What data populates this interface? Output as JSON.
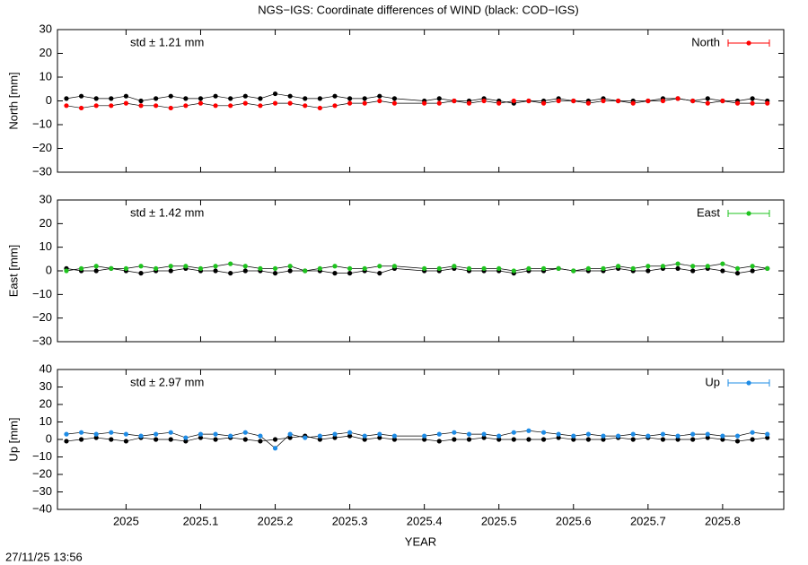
{
  "title": "NGS−IGS: Coordinate differences of WIND (black: COD−IGS)",
  "timestamp": "27/11/25 13:56",
  "chart_data": [
    {
      "type": "line",
      "ylabel": "North [mm]",
      "annotation": "std ± 1.21 mm",
      "annotation_color": "#ff0000",
      "x": [
        2024.92,
        2024.94,
        2024.96,
        2024.98,
        2025.0,
        2025.02,
        2025.04,
        2025.06,
        2025.08,
        2025.1,
        2025.12,
        2025.14,
        2025.16,
        2025.18,
        2025.2,
        2025.22,
        2025.24,
        2025.26,
        2025.28,
        2025.3,
        2025.32,
        2025.34,
        2025.36,
        2025.4,
        2025.42,
        2025.44,
        2025.46,
        2025.48,
        2025.5,
        2025.52,
        2025.54,
        2025.56,
        2025.58,
        2025.6,
        2025.62,
        2025.64,
        2025.66,
        2025.68,
        2025.7,
        2025.72,
        2025.74,
        2025.76,
        2025.78,
        2025.8,
        2025.82,
        2025.84,
        2025.86
      ],
      "xlim": [
        2024.908,
        2025.882
      ],
      "xticks": [
        2025,
        2025.1,
        2025.2,
        2025.3,
        2025.4,
        2025.5,
        2025.6,
        2025.7,
        2025.8
      ],
      "ylim": [
        -30,
        30
      ],
      "yticks": [
        {
          "value": -30,
          "label": "−30"
        },
        {
          "value": -20,
          "label": "−20"
        },
        {
          "value": -10,
          "label": "−10"
        },
        0,
        10,
        20,
        30
      ],
      "series": [
        {
          "color": "#000000",
          "values": [
            1,
            2,
            1,
            1,
            2,
            0,
            1,
            2,
            1,
            1,
            2,
            1,
            2,
            1,
            3,
            2,
            1,
            1,
            2,
            1,
            1,
            2,
            1,
            0,
            1,
            0,
            0,
            1,
            0,
            -1,
            0,
            0,
            1,
            0,
            0,
            1,
            0,
            0,
            0,
            1,
            1,
            0,
            1,
            0,
            0,
            1,
            0
          ]
        },
        {
          "name": "North",
          "color": "#ff0000",
          "values": [
            -2,
            -3,
            -2,
            -2,
            -1,
            -2,
            -2,
            -3,
            -2,
            -1,
            -2,
            -2,
            -1,
            -2,
            -1,
            -1,
            -2,
            -3,
            -2,
            -1,
            -1,
            0,
            -1,
            -1,
            -1,
            0,
            -1,
            0,
            -1,
            0,
            0,
            -1,
            0,
            0,
            -1,
            0,
            0,
            -1,
            0,
            0,
            1,
            0,
            -1,
            0,
            -1,
            -1,
            -1
          ]
        }
      ]
    },
    {
      "type": "line",
      "ylabel": "East [mm]",
      "annotation": "std ± 1.42 mm",
      "annotation_color": "#1ec31e",
      "x": [
        2024.92,
        2024.94,
        2024.96,
        2024.98,
        2025.0,
        2025.02,
        2025.04,
        2025.06,
        2025.08,
        2025.1,
        2025.12,
        2025.14,
        2025.16,
        2025.18,
        2025.2,
        2025.22,
        2025.24,
        2025.26,
        2025.28,
        2025.3,
        2025.32,
        2025.34,
        2025.36,
        2025.4,
        2025.42,
        2025.44,
        2025.46,
        2025.48,
        2025.5,
        2025.52,
        2025.54,
        2025.56,
        2025.58,
        2025.6,
        2025.62,
        2025.64,
        2025.66,
        2025.68,
        2025.7,
        2025.72,
        2025.74,
        2025.76,
        2025.78,
        2025.8,
        2025.82,
        2025.84,
        2025.86
      ],
      "xlim": [
        2024.908,
        2025.882
      ],
      "xticks": [
        2025,
        2025.1,
        2025.2,
        2025.3,
        2025.4,
        2025.5,
        2025.6,
        2025.7,
        2025.8
      ],
      "ylim": [
        -30,
        30
      ],
      "yticks": [
        {
          "value": -30,
          "label": "−30"
        },
        {
          "value": -20,
          "label": "−20"
        },
        {
          "value": -10,
          "label": "−10"
        },
        0,
        10,
        20,
        30
      ],
      "series": [
        {
          "color": "#000000",
          "values": [
            1,
            0,
            0,
            1,
            0,
            -1,
            0,
            0,
            1,
            0,
            0,
            -1,
            0,
            0,
            -1,
            0,
            0,
            0,
            -1,
            -1,
            0,
            -1,
            1,
            0,
            0,
            1,
            0,
            0,
            0,
            -1,
            0,
            0,
            1,
            0,
            0,
            0,
            1,
            0,
            0,
            1,
            1,
            0,
            1,
            0,
            -1,
            0,
            1
          ]
        },
        {
          "name": "East",
          "color": "#1ec31e",
          "values": [
            0,
            1,
            2,
            1,
            1,
            2,
            1,
            2,
            2,
            1,
            2,
            3,
            2,
            1,
            1,
            2,
            0,
            1,
            2,
            1,
            1,
            2,
            2,
            1,
            1,
            2,
            1,
            1,
            1,
            0,
            1,
            1,
            1,
            0,
            1,
            1,
            2,
            1,
            2,
            2,
            3,
            2,
            2,
            3,
            1,
            2,
            1
          ]
        }
      ]
    },
    {
      "type": "line",
      "ylabel": "Up [mm]",
      "xlabel": "YEAR",
      "annotation": "std ± 2.97 mm",
      "annotation_color": "#1e8ce6",
      "x": [
        2024.92,
        2024.94,
        2024.96,
        2024.98,
        2025.0,
        2025.02,
        2025.04,
        2025.06,
        2025.08,
        2025.1,
        2025.12,
        2025.14,
        2025.16,
        2025.18,
        2025.2,
        2025.22,
        2025.24,
        2025.26,
        2025.28,
        2025.3,
        2025.32,
        2025.34,
        2025.36,
        2025.4,
        2025.42,
        2025.44,
        2025.46,
        2025.48,
        2025.5,
        2025.52,
        2025.54,
        2025.56,
        2025.58,
        2025.6,
        2025.62,
        2025.64,
        2025.66,
        2025.68,
        2025.7,
        2025.72,
        2025.74,
        2025.76,
        2025.78,
        2025.8,
        2025.82,
        2025.84,
        2025.86
      ],
      "xlim": [
        2024.908,
        2025.882
      ],
      "xticks": [
        2025,
        2025.1,
        2025.2,
        2025.3,
        2025.4,
        2025.5,
        2025.6,
        2025.7,
        2025.8
      ],
      "ylim": [
        -40,
        40
      ],
      "yticks": [
        {
          "value": -40,
          "label": "−40"
        },
        {
          "value": -30,
          "label": "−30"
        },
        {
          "value": -20,
          "label": "−20"
        },
        {
          "value": -10,
          "label": "−10"
        },
        0,
        10,
        20,
        30,
        40
      ],
      "series": [
        {
          "color": "#000000",
          "values": [
            -1,
            0,
            1,
            0,
            -1,
            1,
            0,
            0,
            -1,
            1,
            0,
            1,
            0,
            -1,
            0,
            1,
            2,
            0,
            1,
            2,
            0,
            1,
            0,
            0,
            -1,
            0,
            0,
            1,
            0,
            0,
            0,
            0,
            1,
            0,
            0,
            0,
            1,
            0,
            1,
            0,
            0,
            0,
            1,
            0,
            -1,
            0,
            1
          ]
        },
        {
          "name": "Up",
          "color": "#1e8ce6",
          "values": [
            3,
            4,
            3,
            4,
            3,
            2,
            3,
            4,
            1,
            3,
            3,
            2,
            4,
            2,
            -5,
            3,
            1,
            2,
            3,
            4,
            2,
            3,
            2,
            2,
            3,
            4,
            3,
            3,
            2,
            4,
            5,
            4,
            3,
            2,
            3,
            2,
            2,
            3,
            2,
            3,
            2,
            3,
            3,
            2,
            2,
            4,
            3
          ]
        }
      ]
    }
  ]
}
